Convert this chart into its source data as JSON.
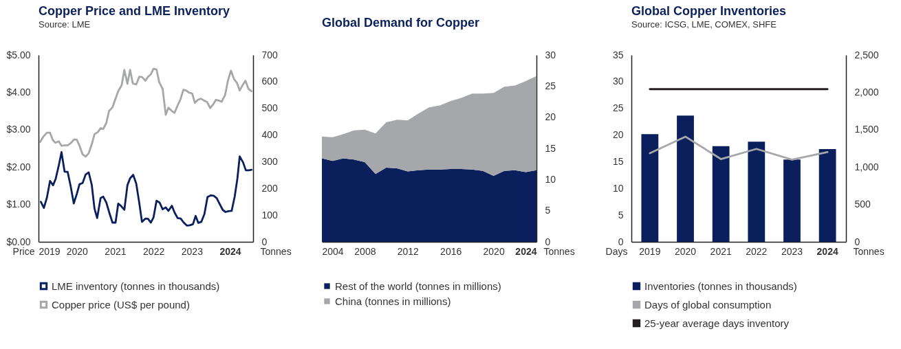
{
  "chart_data": [
    {
      "type": "line",
      "title": "Copper Price and LME Inventory",
      "subtitle": "Source: LME",
      "ylabel": "Price",
      "y2label": "Tonnes",
      "xlim": [
        2019,
        2024.6
      ],
      "xticks": [
        2019,
        2020,
        2021,
        2022,
        2023,
        2024
      ],
      "ylim": [
        0,
        5
      ],
      "yticks": [
        {
          "value": 0,
          "label": "$0.00"
        },
        {
          "value": 1,
          "label": "$1.00"
        },
        {
          "value": 2,
          "label": "$2.00"
        },
        {
          "value": 3,
          "label": "$3.00"
        },
        {
          "value": 4,
          "label": "$4.00"
        },
        {
          "value": 5,
          "label": "$5.00"
        }
      ],
      "y2lim": [
        0,
        700
      ],
      "y2ticks": [
        0,
        100,
        200,
        300,
        400,
        500,
        600,
        700
      ],
      "legend": "bottom",
      "grid": false,
      "series": [
        {
          "name": "LME inventory (tonnes in thousands)",
          "axis": "y2",
          "color": "#0a1f5c",
          "x": [
            2019.06,
            2019.14,
            2019.22,
            2019.3,
            2019.38,
            2019.45,
            2019.53,
            2019.6,
            2019.68,
            2019.76,
            2019.84,
            2019.92,
            2020.0,
            2020.07,
            2020.15,
            2020.23,
            2020.31,
            2020.39,
            2020.46,
            2020.53,
            2020.62,
            2020.69,
            2020.77,
            2020.85,
            2020.93,
            2021.01,
            2021.08,
            2021.15,
            2021.24,
            2021.32,
            2021.39,
            2021.47,
            2021.55,
            2021.63,
            2021.7,
            2021.79,
            2021.86,
            2021.93,
            2022.0,
            2022.08,
            2022.16,
            2022.24,
            2022.32,
            2022.39,
            2022.48,
            2022.55,
            2022.63,
            2022.71,
            2022.79,
            2022.87,
            2022.95,
            2023.03,
            2023.1,
            2023.17,
            2023.25,
            2023.33,
            2023.41,
            2023.49,
            2023.57,
            2023.65,
            2023.72,
            2023.81,
            2023.88,
            2023.96,
            2024.04,
            2024.12,
            2024.19,
            2024.25,
            2024.34,
            2024.41,
            2024.49,
            2024.56
          ],
          "values": [
            150,
            127,
            166,
            228,
            212,
            237,
            287,
            336,
            263,
            262,
            208,
            144,
            180,
            216,
            220,
            252,
            260,
            213,
            125,
            89,
            164,
            169,
            147,
            108,
            72,
            72,
            143,
            135,
            120,
            212,
            238,
            251,
            218,
            145,
            75,
            87,
            86,
            72,
            91,
            154,
            147,
            122,
            129,
            116,
            135,
            110,
            89,
            87,
            72,
            61,
            62,
            66,
            97,
            71,
            75,
            104,
            168,
            174,
            173,
            164,
            144,
            119,
            112,
            115,
            116,
            170,
            237,
            320,
            297,
            268,
            268,
            270
          ]
        },
        {
          "name": "Copper price (US$ per pound)",
          "axis": "y",
          "color": "#a6a7aa",
          "x": [
            2019.04,
            2019.13,
            2019.22,
            2019.3,
            2019.37,
            2019.44,
            2019.53,
            2019.6,
            2019.68,
            2019.76,
            2019.84,
            2019.93,
            2020.0,
            2020.07,
            2020.15,
            2020.23,
            2020.31,
            2020.39,
            2020.46,
            2020.55,
            2020.62,
            2020.69,
            2020.77,
            2020.84,
            2020.93,
            2021.0,
            2021.08,
            2021.17,
            2021.24,
            2021.32,
            2021.39,
            2021.46,
            2021.55,
            2021.63,
            2021.7,
            2021.79,
            2021.86,
            2021.93,
            2022.0,
            2022.08,
            2022.15,
            2022.24,
            2022.32,
            2022.39,
            2022.48,
            2022.55,
            2022.63,
            2022.7,
            2022.78,
            2022.85,
            2022.93,
            2023.01,
            2023.08,
            2023.16,
            2023.24,
            2023.32,
            2023.4,
            2023.48,
            2023.56,
            2023.63,
            2023.7,
            2023.78,
            2023.87,
            2023.94,
            2024.02,
            2024.1,
            2024.18,
            2024.25,
            2024.32,
            2024.4,
            2024.48,
            2024.56
          ],
          "values": [
            2.67,
            2.82,
            2.92,
            2.92,
            2.73,
            2.65,
            2.69,
            2.57,
            2.58,
            2.58,
            2.64,
            2.74,
            2.73,
            2.57,
            2.34,
            2.28,
            2.37,
            2.61,
            2.88,
            2.94,
            3.04,
            3.02,
            3.18,
            3.5,
            3.6,
            3.8,
            4.03,
            4.19,
            4.6,
            4.23,
            4.6,
            4.24,
            4.21,
            4.42,
            4.41,
            4.31,
            4.42,
            4.48,
            4.63,
            4.61,
            4.27,
            4.09,
            3.4,
            3.59,
            3.5,
            3.45,
            3.65,
            3.8,
            4.07,
            4.05,
            3.99,
            3.97,
            3.72,
            3.8,
            3.83,
            3.78,
            3.74,
            3.58,
            3.68,
            3.8,
            3.78,
            3.75,
            3.93,
            4.3,
            4.58,
            4.36,
            4.25,
            4.05,
            4.18,
            4.31,
            4.09,
            4.03
          ]
        }
      ]
    },
    {
      "type": "area",
      "title": "Global Demand for Copper",
      "y2label": "Tonnes",
      "stacked": true,
      "x": [
        2004,
        2005,
        2006,
        2007,
        2008,
        2009,
        2010,
        2011,
        2012,
        2013,
        2014,
        2015,
        2016,
        2017,
        2018,
        2019,
        2020,
        2021,
        2022,
        2023,
        2024
      ],
      "xlim": [
        2004,
        2024
      ],
      "xticks": [
        2004,
        2008,
        2012,
        2016,
        2020,
        2024
      ],
      "y2lim": [
        0,
        30
      ],
      "y2ticks": [
        0,
        5,
        10,
        15,
        20,
        25,
        30
      ],
      "legend": "bottom",
      "grid": false,
      "series": [
        {
          "name": "Rest of the world (tonnes in millions)",
          "axis": "y2",
          "color": "#0a1f5c",
          "values": [
            13.4,
            13.0,
            13.4,
            13.2,
            12.8,
            10.9,
            11.9,
            11.8,
            11.3,
            11.5,
            11.6,
            11.6,
            11.7,
            11.7,
            11.6,
            11.4,
            10.6,
            11.4,
            11.5,
            11.2,
            11.5
          ]
        },
        {
          "name": "China (tonnes in millions)",
          "axis": "y2",
          "color": "#a6a7aa",
          "values": [
            3.5,
            3.8,
            3.9,
            4.7,
            5.2,
            6.5,
            7.3,
            7.8,
            8.2,
            9.1,
            10.0,
            10.3,
            10.9,
            11.4,
            12.2,
            12.4,
            13.3,
            13.5,
            13.6,
            14.6,
            15.1
          ]
        }
      ]
    },
    {
      "type": "bar",
      "title": "Global Copper Inventories",
      "subtitle": "Source: ICSG, LME, COMEX, SHFE",
      "ylabel": "Days",
      "y2label": "Tonnes",
      "categories": [
        "2019",
        "2020",
        "2021",
        "2022",
        "2023",
        "2024"
      ],
      "ylim": [
        0,
        35
      ],
      "yticks": [
        0,
        5,
        10,
        15,
        20,
        25,
        30,
        35
      ],
      "y2lim": [
        0,
        2500
      ],
      "y2ticks": [
        0,
        {
          "value": 500,
          "label": "500"
        },
        {
          "value": 1000,
          "label": "1,000"
        },
        {
          "value": 1500,
          "label": "1,500"
        },
        {
          "value": 2000,
          "label": "2,000"
        },
        {
          "value": 2500,
          "label": "2,500"
        }
      ],
      "legend": "bottom",
      "grid": false,
      "series": [
        {
          "name": "Inventories (tonnes in thousands)",
          "axis": "y2",
          "color": "#0a1f5c",
          "values": [
            1440,
            1690,
            1280,
            1340,
            1100,
            1240
          ]
        },
        {
          "name": "Days of global consumption",
          "type": "line",
          "axis": "y",
          "color": "#a6a7aa",
          "values": [
            16.6,
            19.7,
            15.5,
            17.4,
            15.4,
            16.8
          ]
        },
        {
          "name": "25-year average days inventory",
          "type": "line",
          "axis": "y",
          "color": "#231f20",
          "values": [
            28.6,
            28.6,
            28.6,
            28.6,
            28.6,
            28.6
          ]
        }
      ]
    }
  ]
}
